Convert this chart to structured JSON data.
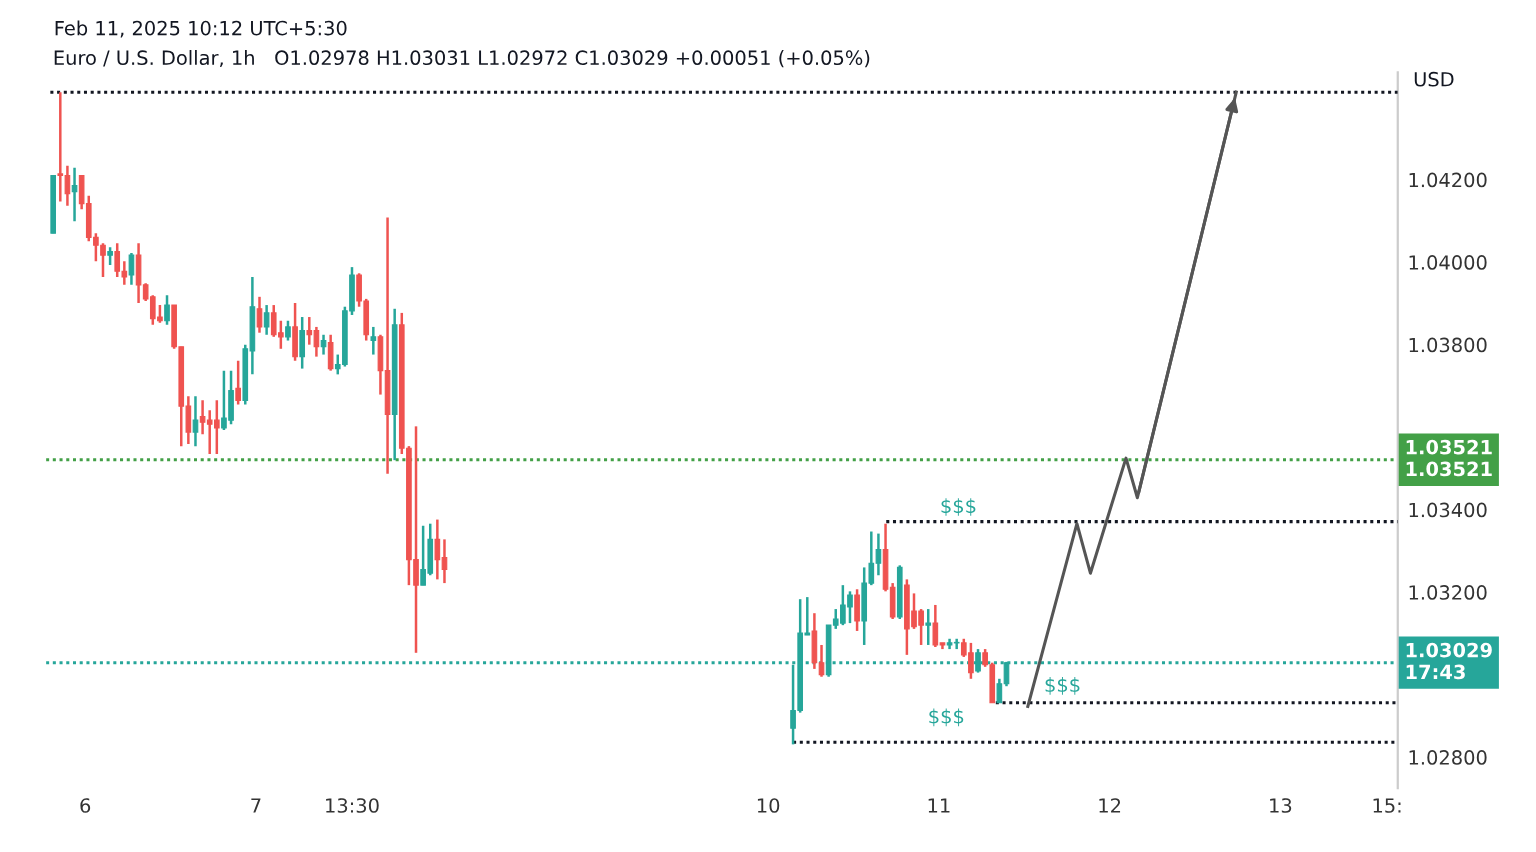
{
  "chart_data": {
    "type": "candlestick",
    "title": "Euro / U.S. Dollar, 1h",
    "subtitle": "O1.02978 H1.03031 L1.02972 C1.03029 +0.00051 (+0.05%)",
    "ylabel": "USD",
    "annotations": [
      "Feb 11, 2025 10:12 UTC+5:30",
      "$$$",
      "$$$",
      "$$$"
    ],
    "x": [
      "2025-02-05T19:30",
      "2025-02-05T20:30",
      "2025-02-05T21:30",
      "2025-02-05T22:30",
      "2025-02-05T23:30",
      "2025-02-06T00:30",
      "2025-02-06T01:30",
      "2025-02-06T02:30",
      "2025-02-06T03:30",
      "2025-02-06T04:30",
      "2025-02-06T05:30",
      "2025-02-06T06:30",
      "2025-02-06T07:30",
      "2025-02-06T08:30",
      "2025-02-06T09:30",
      "2025-02-06T10:30",
      "2025-02-06T11:30",
      "2025-02-06T12:30",
      "2025-02-06T13:30",
      "2025-02-06T14:30",
      "2025-02-06T15:30",
      "2025-02-06T16:30",
      "2025-02-06T17:30",
      "2025-02-06T18:30",
      "2025-02-06T19:30",
      "2025-02-06T20:30",
      "2025-02-06T21:30",
      "2025-02-06T22:30",
      "2025-02-06T23:30",
      "2025-02-07T00:30",
      "2025-02-07T01:30",
      "2025-02-07T02:30",
      "2025-02-07T03:30",
      "2025-02-07T04:30",
      "2025-02-07T05:30",
      "2025-02-07T06:30",
      "2025-02-07T07:30",
      "2025-02-07T08:30",
      "2025-02-07T09:30",
      "2025-02-07T10:30",
      "2025-02-07T11:30",
      "2025-02-07T12:30",
      "2025-02-07T13:30",
      "2025-02-07T14:30",
      "2025-02-07T15:30",
      "2025-02-07T16:30",
      "2025-02-07T17:30",
      "2025-02-07T18:30",
      "2025-02-07T19:30",
      "2025-02-07T20:30",
      "2025-02-07T21:30",
      "2025-02-07T22:30",
      "2025-02-07T23:30",
      "2025-02-08T00:30",
      "2025-02-08T01:30",
      "2025-02-08T02:30",
      "2025-02-10T03:30",
      "2025-02-10T04:30",
      "2025-02-10T05:30",
      "2025-02-10T06:30",
      "2025-02-10T07:30",
      "2025-02-10T08:30",
      "2025-02-10T09:30",
      "2025-02-10T10:30",
      "2025-02-10T11:30",
      "2025-02-10T12:30",
      "2025-02-10T13:30",
      "2025-02-10T14:30",
      "2025-02-10T15:30",
      "2025-02-10T16:30",
      "2025-02-10T17:30",
      "2025-02-10T18:30",
      "2025-02-10T19:30",
      "2025-02-10T20:30",
      "2025-02-10T21:30",
      "2025-02-10T22:30",
      "2025-02-10T23:30",
      "2025-02-11T00:30",
      "2025-02-11T01:30",
      "2025-02-11T02:30",
      "2025-02-11T03:30",
      "2025-02-11T04:30",
      "2025-02-11T05:30",
      "2025-02-11T06:30",
      "2025-02-11T07:30",
      "2025-02-11T08:30",
      "2025-02-11T09:30"
    ],
    "ohlc": [
      [
        1.0407,
        1.0421,
        1.0407,
        1.0421
      ],
      [
        1.04214,
        1.04412,
        1.04147,
        1.0421
      ],
      [
        1.0421,
        1.04234,
        1.04137,
        1.04166
      ],
      [
        1.04171,
        1.04229,
        1.04099,
        1.04186
      ],
      [
        1.0421,
        1.0421,
        1.04128,
        1.04142
      ],
      [
        1.04142,
        1.04161,
        1.04051,
        1.0406
      ],
      [
        1.0406,
        1.0407,
        1.04002,
        1.04041
      ],
      [
        1.04041,
        1.04046,
        1.03964,
        1.04017
      ],
      [
        1.04017,
        1.04036,
        1.03993,
        1.04026
      ],
      [
        1.04026,
        1.04046,
        1.03964,
        1.03978
      ],
      [
        1.03978,
        1.04002,
        1.03945,
        1.03964
      ],
      [
        1.03969,
        1.04022,
        1.03945,
        1.04017
      ],
      [
        1.04017,
        1.04046,
        1.03901,
        1.03945
      ],
      [
        1.03945,
        1.03949,
        1.03906,
        1.03911
      ],
      [
        1.03916,
        1.0392,
        1.03848,
        1.03863
      ],
      [
        1.03867,
        1.03896,
        1.03853,
        1.03858
      ],
      [
        1.03858,
        1.0392,
        1.03848,
        1.03896
      ],
      [
        1.03896,
        1.03896,
        1.0379,
        1.03795
      ],
      [
        1.03795,
        1.03795,
        1.03554,
        1.03651
      ],
      [
        1.03651,
        1.03675,
        1.03559,
        1.03588
      ],
      [
        1.03588,
        1.03675,
        1.03554,
        1.03617
      ],
      [
        1.03626,
        1.03665,
        1.03583,
        1.03612
      ],
      [
        1.03617,
        1.03641,
        1.03535,
        1.03607
      ],
      [
        1.03617,
        1.03665,
        1.03535,
        1.03598
      ],
      [
        1.03598,
        1.03737,
        1.03593,
        1.03622
      ],
      [
        1.03617,
        1.03737,
        1.03607,
        1.03689
      ],
      [
        1.03694,
        1.03761,
        1.03655,
        1.03665
      ],
      [
        1.03665,
        1.038,
        1.03655,
        1.0379
      ],
      [
        1.03785,
        1.03964,
        1.03728,
        1.03892
      ],
      [
        1.03887,
        1.03916,
        1.03829,
        1.03843
      ],
      [
        1.03843,
        1.03896,
        1.03824,
        1.03877
      ],
      [
        1.03877,
        1.03896,
        1.03819,
        1.03824
      ],
      [
        1.03829,
        1.03858,
        1.0379,
        1.03819
      ],
      [
        1.03819,
        1.03858,
        1.0381,
        1.03843
      ],
      [
        1.03843,
        1.03901,
        1.03761,
        1.03771
      ],
      [
        1.03771,
        1.03867,
        1.03742,
        1.03834
      ],
      [
        1.03834,
        1.03867,
        1.038,
        1.03824
      ],
      [
        1.03834,
        1.03843,
        1.03771,
        1.03795
      ],
      [
        1.03795,
        1.03824,
        1.03776,
        1.0381
      ],
      [
        1.03805,
        1.03824,
        1.03737,
        1.03742
      ],
      [
        1.03742,
        1.03776,
        1.03728,
        1.03752
      ],
      [
        1.03752,
        1.03892,
        1.03747,
        1.03882
      ],
      [
        1.03882,
        1.03988,
        1.03872,
        1.03969
      ],
      [
        1.03969,
        1.03973,
        1.03892,
        1.03906
      ],
      [
        1.03906,
        1.03911,
        1.0381,
        1.03824
      ],
      [
        1.0381,
        1.03843,
        1.03776,
        1.03819
      ],
      [
        1.03819,
        1.03824,
        1.03679,
        1.03737
      ],
      [
        1.03737,
        1.04108,
        1.03487,
        1.03631
      ],
      [
        1.03631,
        1.03887,
        1.0352,
        1.03848
      ],
      [
        1.03848,
        1.03877,
        1.03535,
        1.03549
      ],
      [
        1.03549,
        1.03554,
        1.03217,
        1.03279
      ],
      [
        1.03279,
        1.03602,
        1.03053,
        1.03217
      ],
      [
        1.03217,
        1.03361,
        1.03217,
        1.03255
      ],
      [
        1.03246,
        1.03366,
        1.03241,
        1.03328
      ],
      [
        1.03328,
        1.03376,
        1.03231,
        1.03279
      ],
      [
        1.03284,
        1.03328,
        1.03222,
        1.03255
      ],
      [
        1.0287,
        1.03024,
        1.02831,
        1.02913
      ],
      [
        1.02913,
        1.03183,
        1.02908,
        1.03101
      ],
      [
        1.03096,
        1.03188,
        1.03096,
        1.03101
      ],
      [
        1.03106,
        1.03149,
        1.03014,
        1.03029
      ],
      [
        1.03029,
        1.03072,
        1.02995,
        1.03
      ],
      [
        1.03,
        1.0312,
        1.02995,
        1.0312
      ],
      [
        1.0312,
        1.03159,
        1.03111,
        1.03135
      ],
      [
        1.03125,
        1.03217,
        1.0312,
        1.03169
      ],
      [
        1.03164,
        1.03202,
        1.03125,
        1.03193
      ],
      [
        1.03193,
        1.03207,
        1.03106,
        1.0313
      ],
      [
        1.0313,
        1.0326,
        1.03072,
        1.03222
      ],
      [
        1.03222,
        1.03347,
        1.03217,
        1.0327
      ],
      [
        1.0327,
        1.03342,
        1.03241,
        1.03303
      ],
      [
        1.03303,
        1.03366,
        1.03202,
        1.03207
      ],
      [
        1.03212,
        1.03222,
        1.03135,
        1.0314
      ],
      [
        1.0314,
        1.03265,
        1.03135,
        1.0326
      ],
      [
        1.03217,
        1.03231,
        1.03048,
        1.03111
      ],
      [
        1.03154,
        1.03197,
        1.03111,
        1.03116
      ],
      [
        1.03154,
        1.03159,
        1.03072,
        1.0312
      ],
      [
        1.0312,
        1.03159,
        1.03072,
        1.03125
      ],
      [
        1.03125,
        1.03169,
        1.03067,
        1.03072
      ],
      [
        1.03077,
        1.03077,
        1.03062,
        1.03072
      ],
      [
        1.03072,
        1.03087,
        1.03062,
        1.03077
      ],
      [
        1.03077,
        1.03087,
        1.03062,
        1.03077
      ],
      [
        1.03077,
        1.03087,
        1.03043,
        1.03048
      ],
      [
        1.03053,
        1.03077,
        1.0299,
        1.03005
      ],
      [
        1.03009,
        1.03062,
        1.03005,
        1.03053
      ],
      [
        1.03053,
        1.03062,
        1.03019,
        1.03024
      ],
      [
        1.03024,
        1.03029,
        1.02932,
        1.02932
      ],
      [
        1.02932,
        1.0299,
        1.02932,
        1.02978
      ],
      [
        1.02978,
        1.03031,
        1.02972,
        1.03029
      ]
    ],
    "colors": [
      "#26a69a",
      "#ef5350",
      "#ef5350",
      "#26a69a",
      "#ef5350",
      "#ef5350",
      "#ef5350",
      "#ef5350",
      "#26a69a",
      "#ef5350",
      "#ef5350",
      "#26a69a",
      "#ef5350",
      "#ef5350",
      "#ef5350",
      "#ef5350",
      "#26a69a",
      "#ef5350",
      "#ef5350",
      "#ef5350",
      "#26a69a",
      "#ef5350",
      "#ef5350",
      "#ef5350",
      "#26a69a",
      "#26a69a",
      "#ef5350",
      "#26a69a",
      "#26a69a",
      "#ef5350",
      "#26a69a",
      "#ef5350",
      "#ef5350",
      "#26a69a",
      "#ef5350",
      "#26a69a",
      "#ef5350",
      "#ef5350",
      "#26a69a",
      "#ef5350",
      "#26a69a",
      "#26a69a",
      "#26a69a",
      "#ef5350",
      "#ef5350",
      "#26a69a",
      "#ef5350",
      "#ef5350",
      "#26a69a",
      "#ef5350",
      "#ef5350",
      "#ef5350",
      "#26a69a",
      "#26a69a",
      "#ef5350",
      "#ef5350",
      "#26a69a",
      "#26a69a",
      "#26a69a",
      "#ef5350",
      "#ef5350",
      "#26a69a",
      "#26a69a",
      "#26a69a",
      "#26a69a",
      "#ef5350",
      "#26a69a",
      "#26a69a",
      "#26a69a",
      "#ef5350",
      "#ef5350",
      "#26a69a",
      "#ef5350",
      "#ef5350",
      "#ef5350",
      "#26a69a",
      "#ef5350",
      "#ef5350",
      "#26a69a",
      "#26a69a",
      "#ef5350",
      "#ef5350",
      "#26a69a",
      "#ef5350",
      "#ef5350",
      "#26a69a",
      "#26a69a"
    ],
    "series": [
      {
        "type": "line",
        "x": [
          "2025-02-05T19:06",
          "2025-02-13T16:30"
        ],
        "values": [
          1.04412,
          1.04412
        ],
        "color": "#131722",
        "line_style": "dotted"
      },
      {
        "type": "line",
        "x": [
          "2025-02-10T16:36",
          "2025-02-13T16:30"
        ],
        "values": [
          1.03371,
          1.03371
        ],
        "color": "#131722",
        "line_style": "dotted"
      },
      {
        "type": "line",
        "x": [
          "2025-02-11T08:00",
          "2025-02-13T16:30"
        ],
        "values": [
          1.02932,
          1.02932
        ],
        "color": "#131722",
        "line_style": "dotted"
      },
      {
        "type": "line",
        "x": [
          "2025-02-10T03:30",
          "2025-02-13T16:30"
        ],
        "values": [
          1.02836,
          1.02836
        ],
        "color": "#131722",
        "line_style": "dotted"
      },
      {
        "type": "line",
        "x": [
          "2025-02-11T12:30",
          "2025-02-11T19:24",
          "2025-02-11T21:18",
          "2025-02-12T02:18",
          "2025-02-12T03:54",
          "2025-02-12T17:48"
        ],
        "values": [
          1.02923,
          1.03366,
          1.03246,
          1.03525,
          1.03429,
          1.04412
        ],
        "color": "#555555",
        "line_style": "solid"
      }
    ],
    "ref_lines": [
      {
        "axis": "y",
        "value": 1.03521,
        "label": "1.03521\n1.03521",
        "color": "#43a047",
        "line_style": "dotted"
      },
      {
        "axis": "y",
        "value": 1.03029,
        "label": "1.03029\n17:43",
        "color": "#26a69a",
        "line_style": "dotted"
      }
    ],
    "xlim": [
      "2025-02-05T18:30",
      "2025-02-13T16:30"
    ],
    "ylim": [
      1.02725,
      1.0446
    ],
    "xticks": [
      {
        "value": "2025-02-06T00:00",
        "label": "6"
      },
      {
        "value": "2025-02-07T00:00",
        "label": "7"
      },
      {
        "value": "2025-02-07T13:30",
        "label": "13:30"
      },
      {
        "value": "2025-02-10T00:00",
        "label": "10"
      },
      {
        "value": "2025-02-11T00:00",
        "label": "11"
      },
      {
        "value": "2025-02-12T00:00",
        "label": "12"
      },
      {
        "value": "2025-02-13T00:00",
        "label": "13"
      },
      {
        "value": "2025-02-13T15:00",
        "label": "15:"
      }
    ],
    "yticks": [
      {
        "value": 1.028,
        "label": "1.02800"
      },
      {
        "value": 1.032,
        "label": "1.03200"
      },
      {
        "value": 1.034,
        "label": "1.03400"
      },
      {
        "value": 1.038,
        "label": "1.03800"
      },
      {
        "value": 1.04,
        "label": "1.04000"
      },
      {
        "value": 1.042,
        "label": "1.04200"
      }
    ],
    "grid": false,
    "legend": false
  }
}
